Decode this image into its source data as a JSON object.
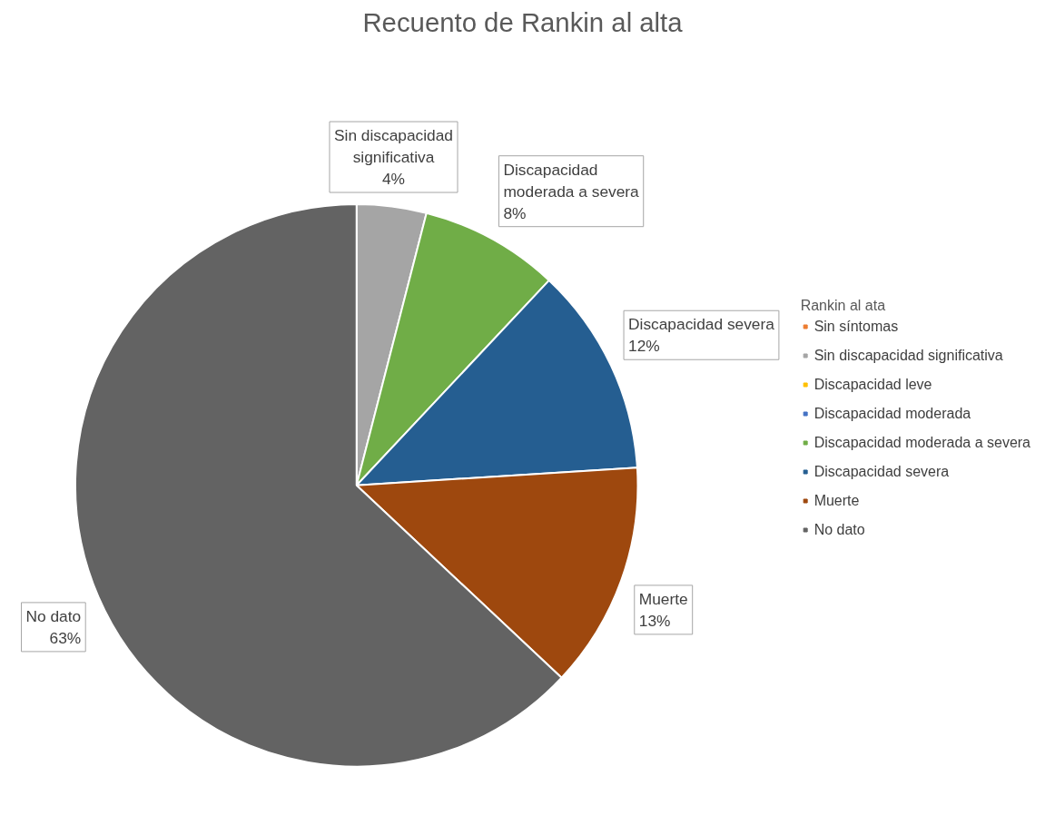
{
  "chart_data": {
    "type": "pie",
    "title": "Recuento de Rankin al alta",
    "legend_title": "Rankin al ata",
    "legend": "right",
    "data_labels": true,
    "categories": [
      "Sin síntomas",
      "Sin discapacidad significativa",
      "Discapacidad leve",
      "Discapacidad moderada",
      "Discapacidad moderada a severa",
      "Discapacidad severa",
      "Muerte",
      "No dato"
    ],
    "values": [
      0,
      4,
      0,
      0,
      8,
      12,
      13,
      63
    ],
    "value_labels": [
      null,
      "4%",
      null,
      null,
      "8%",
      "12%",
      "13%",
      "63%"
    ],
    "colors": [
      "#ed7d31",
      "#a5a5a5",
      "#ffc000",
      "#4472c4",
      "#70ad47",
      "#255e91",
      "#9e480e",
      "#636363"
    ]
  }
}
